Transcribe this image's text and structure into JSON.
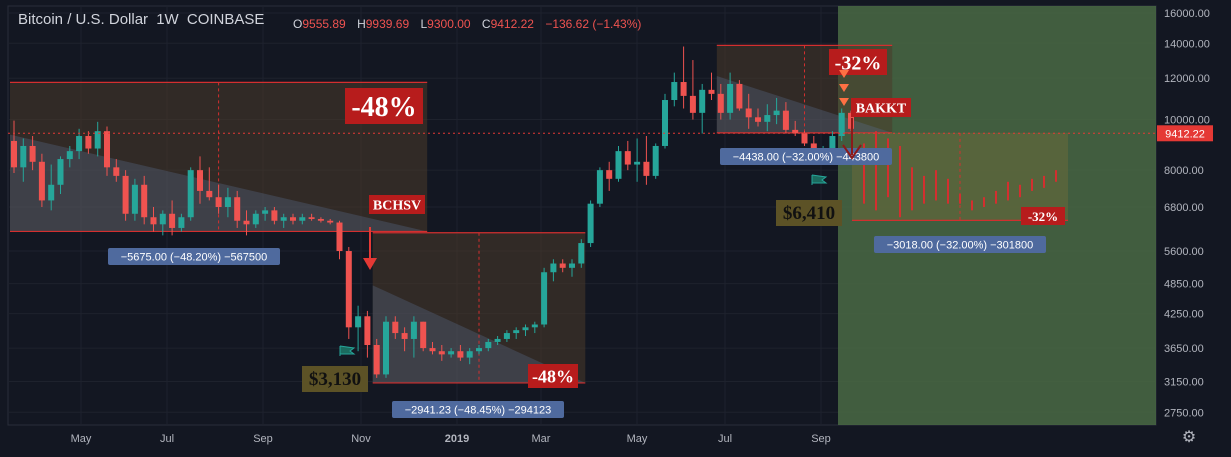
{
  "header": {
    "symbol": "Bitcoin / U.S. Dollar",
    "interval": "1W",
    "exchange": "COINBASE",
    "o_label": "O",
    "o_value": "9555.89",
    "h_label": "H",
    "h_value": "9939.69",
    "l_label": "L",
    "l_value": "9300.00",
    "c_label": "C",
    "c_value": "9412.22",
    "change": "−136.62 (−1.43%)"
  },
  "colors": {
    "background": "#131722",
    "up": "#26a69a",
    "down": "#ef5350",
    "drop_border": "#d32f2f",
    "current_price": "#e53935",
    "projection_zone": "#4a6a44",
    "badge": "#4f6a9e",
    "price_flag": "#5c5226"
  },
  "chart_data": {
    "type": "candlestick",
    "title": "Bitcoin / U.S. Dollar",
    "y_scale": "log",
    "ylim": [
      2600,
      16500
    ],
    "y_ticks": [
      "16000.00",
      "14000.00",
      "12000.00",
      "10000.00",
      "8000.00",
      "6800.00",
      "5600.00",
      "4850.00",
      "4250.00",
      "3650.00",
      "3150.00",
      "2750.00"
    ],
    "x_ticks": [
      "May",
      "Jul",
      "Sep",
      "Nov",
      "2019",
      "Mar",
      "May",
      "Jul",
      "Sep"
    ],
    "current_price": "9412.22",
    "candles": [
      [
        9100,
        9950,
        7900,
        8100
      ],
      [
        8100,
        9200,
        7600,
        8900
      ],
      [
        8900,
        9300,
        8000,
        8300
      ],
      [
        8300,
        8600,
        6800,
        7000
      ],
      [
        7000,
        8200,
        6700,
        7500
      ],
      [
        7500,
        8500,
        7200,
        8400
      ],
      [
        8400,
        8900,
        8100,
        8700
      ],
      [
        8700,
        9600,
        8400,
        9300
      ],
      [
        9300,
        9500,
        8600,
        8800
      ],
      [
        8800,
        9900,
        8500,
        9500
      ],
      [
        9500,
        9700,
        7800,
        8100
      ],
      [
        8100,
        8400,
        7600,
        7800
      ],
      [
        7800,
        8000,
        6400,
        6600
      ],
      [
        6600,
        7700,
        6400,
        7500
      ],
      [
        7500,
        7800,
        6300,
        6500
      ],
      [
        6500,
        6800,
        6100,
        6300
      ],
      [
        6300,
        6700,
        6000,
        6600
      ],
      [
        6600,
        7000,
        6000,
        6200
      ],
      [
        6200,
        6600,
        6100,
        6500
      ],
      [
        6500,
        8100,
        6400,
        8000
      ],
      [
        8000,
        8500,
        6900,
        7300
      ],
      [
        7300,
        8100,
        7000,
        7100
      ],
      [
        7100,
        7500,
        6600,
        6800
      ],
      [
        6800,
        7400,
        6500,
        7100
      ],
      [
        7100,
        7300,
        6200,
        6400
      ],
      [
        6400,
        6700,
        6000,
        6300
      ],
      [
        6300,
        6700,
        6200,
        6600
      ],
      [
        6600,
        6800,
        6400,
        6700
      ],
      [
        6700,
        6800,
        6300,
        6400
      ],
      [
        6400,
        6600,
        6200,
        6500
      ],
      [
        6500,
        6600,
        6300,
        6400
      ],
      [
        6400,
        6600,
        6300,
        6500
      ],
      [
        6500,
        6600,
        6400,
        6450
      ],
      [
        6450,
        6500,
        6350,
        6400
      ],
      [
        6400,
        6450,
        6300,
        6350
      ],
      [
        6350,
        6400,
        5400,
        5600
      ],
      [
        5600,
        5700,
        3800,
        4000
      ],
      [
        4000,
        4400,
        3600,
        4200
      ],
      [
        4200,
        4300,
        3500,
        3700
      ],
      [
        3700,
        3800,
        3200,
        3250
      ],
      [
        3250,
        4200,
        3200,
        4100
      ],
      [
        4100,
        4200,
        3800,
        3900
      ],
      [
        3900,
        4000,
        3600,
        3800
      ],
      [
        3800,
        4200,
        3500,
        4100
      ],
      [
        4100,
        4100,
        3600,
        3650
      ],
      [
        3650,
        3750,
        3550,
        3600
      ],
      [
        3600,
        3700,
        3450,
        3550
      ],
      [
        3550,
        3650,
        3500,
        3600
      ],
      [
        3600,
        3700,
        3450,
        3500
      ],
      [
        3500,
        3650,
        3400,
        3600
      ],
      [
        3600,
        3700,
        3550,
        3650
      ],
      [
        3650,
        3800,
        3600,
        3750
      ],
      [
        3750,
        3850,
        3700,
        3800
      ],
      [
        3800,
        3950,
        3750,
        3900
      ],
      [
        3900,
        4000,
        3800,
        3950
      ],
      [
        3950,
        4050,
        3850,
        4000
      ],
      [
        4000,
        4100,
        3900,
        4050
      ],
      [
        4050,
        5200,
        4000,
        5100
      ],
      [
        5100,
        5400,
        4900,
        5300
      ],
      [
        5300,
        5400,
        5100,
        5200
      ],
      [
        5200,
        5400,
        5000,
        5300
      ],
      [
        5300,
        5900,
        5200,
        5800
      ],
      [
        5800,
        7000,
        5700,
        6900
      ],
      [
        6900,
        8100,
        6800,
        8000
      ],
      [
        8000,
        8300,
        7300,
        7700
      ],
      [
        7700,
        8900,
        7600,
        8700
      ],
      [
        8700,
        9100,
        8000,
        8200
      ],
      [
        8200,
        9200,
        7600,
        8300
      ],
      [
        8300,
        9300,
        7500,
        7800
      ],
      [
        7800,
        9000,
        7700,
        8900
      ],
      [
        8900,
        11200,
        8800,
        10900
      ],
      [
        10900,
        12300,
        10600,
        11800
      ],
      [
        11800,
        13800,
        10500,
        11100
      ],
      [
        11100,
        13000,
        10000,
        10300
      ],
      [
        10300,
        11700,
        9400,
        11400
      ],
      [
        11400,
        12300,
        10900,
        11200
      ],
      [
        11200,
        11700,
        10000,
        10300
      ],
      [
        10300,
        12300,
        10000,
        11700
      ],
      [
        11700,
        11900,
        10400,
        10500
      ],
      [
        10500,
        11200,
        9600,
        10100
      ],
      [
        10100,
        10500,
        9700,
        9900
      ],
      [
        9900,
        10700,
        9500,
        10200
      ],
      [
        10200,
        11000,
        9800,
        10400
      ],
      [
        10400,
        10800,
        9400,
        9555
      ],
      [
        9555,
        9940,
        9300,
        9412
      ],
      [
        9412,
        9500,
        8900,
        9000
      ],
      [
        9000,
        9300,
        8500,
        8600
      ],
      [
        8600,
        8900,
        8400,
        8800
      ],
      [
        8800,
        9500,
        8600,
        9300
      ],
      [
        9300,
        10500,
        9100,
        10300
      ],
      [
        10300,
        10400,
        9500,
        9600
      ]
    ],
    "annotations": {
      "drop1_pct": "-48%",
      "drop1_badge": "−5675.00 (−48.20%) −567500",
      "drop2_pct": "-48%",
      "drop2_badge": "−2941.23 (−48.45%) −294123",
      "drop3_pct": "-32%",
      "drop3_badge": "−4438.00 (−32.00%) −443800",
      "proj_pct": "-32%",
      "proj_badge": "−3018.00 (−32.00%) −301800",
      "flag1_price": "$3,130",
      "flag2_price": "$6,410",
      "event1": "BCHSV",
      "event2": "BAKKT"
    }
  },
  "toolbar": {
    "settings_icon": "gear-icon"
  }
}
